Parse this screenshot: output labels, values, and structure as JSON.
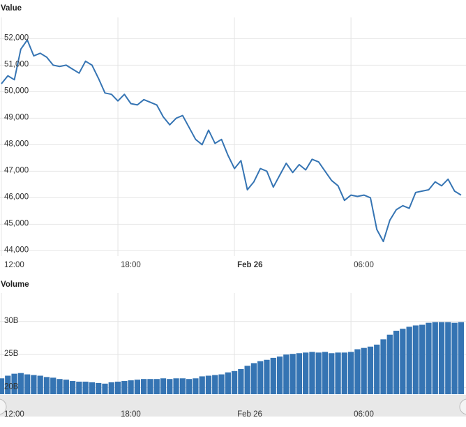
{
  "chart_data": [
    {
      "type": "line",
      "title": "Value",
      "color": "#3574b3",
      "grid": true,
      "x": [
        "12:00",
        "12:20",
        "12:40",
        "13:00",
        "13:20",
        "13:40",
        "14:00",
        "14:20",
        "14:40",
        "15:00",
        "15:20",
        "15:40",
        "16:00",
        "16:20",
        "16:40",
        "17:00",
        "17:20",
        "17:40",
        "18:00",
        "18:20",
        "18:40",
        "19:00",
        "19:20",
        "19:40",
        "20:00",
        "20:20",
        "20:40",
        "21:00",
        "21:20",
        "21:40",
        "22:00",
        "22:20",
        "22:40",
        "23:00",
        "23:20",
        "23:40",
        "00:00",
        "00:20",
        "00:40",
        "01:00",
        "01:20",
        "01:40",
        "02:00",
        "02:20",
        "02:40",
        "03:00",
        "03:20",
        "03:40",
        "04:00",
        "04:20",
        "04:40",
        "05:00",
        "05:20",
        "05:40",
        "06:00",
        "06:20",
        "06:40",
        "07:00",
        "07:20",
        "07:40",
        "08:00",
        "08:20",
        "08:40",
        "09:00",
        "09:20",
        "09:40",
        "10:00",
        "10:20",
        "10:40",
        "11:00",
        "11:20",
        "11:40"
      ],
      "values": [
        50300,
        50600,
        50450,
        51600,
        51950,
        51350,
        51450,
        51300,
        51000,
        50950,
        51000,
        50850,
        50700,
        51150,
        51000,
        50500,
        49950,
        49900,
        49650,
        49900,
        49550,
        49500,
        49700,
        49600,
        49500,
        49050,
        48750,
        49000,
        49100,
        48650,
        48200,
        48000,
        48550,
        48050,
        48200,
        47600,
        47100,
        47400,
        46300,
        46600,
        47100,
        47000,
        46400,
        46850,
        47300,
        46950,
        47250,
        47050,
        47450,
        47350,
        47000,
        46650,
        46450,
        45900,
        46100,
        46050,
        46100,
        46000,
        44800,
        44350,
        45150,
        45550,
        45700,
        45600,
        46200,
        46250,
        46300,
        46600,
        46450,
        46700,
        46250,
        46100
      ],
      "ylim": [
        43800,
        52800
      ],
      "yticks": [
        {
          "value": 44000,
          "label": "44,000"
        },
        {
          "value": 45000,
          "label": "45,000"
        },
        {
          "value": 46000,
          "label": "46,000"
        },
        {
          "value": 47000,
          "label": "47,000"
        },
        {
          "value": 48000,
          "label": "48,000"
        },
        {
          "value": 49000,
          "label": "49,000"
        },
        {
          "value": 50000,
          "label": "50,000"
        },
        {
          "value": 51000,
          "label": "51,000"
        },
        {
          "value": 52000,
          "label": "52,000"
        }
      ],
      "xticks": [
        {
          "value": "12:00",
          "label": "12:00"
        },
        {
          "value": "18:00",
          "label": "18:00"
        },
        {
          "value": "00:00",
          "label": "Feb 26"
        },
        {
          "value": "06:00",
          "label": "06:00"
        }
      ]
    },
    {
      "type": "bar",
      "title": "Volume",
      "color": "#3574b3",
      "grid": true,
      "x": [
        "12:00",
        "12:20",
        "12:40",
        "13:00",
        "13:20",
        "13:40",
        "14:00",
        "14:20",
        "14:40",
        "15:00",
        "15:20",
        "15:40",
        "16:00",
        "16:20",
        "16:40",
        "17:00",
        "17:20",
        "17:40",
        "18:00",
        "18:20",
        "18:40",
        "19:00",
        "19:20",
        "19:40",
        "20:00",
        "20:20",
        "20:40",
        "21:00",
        "21:20",
        "21:40",
        "22:00",
        "22:20",
        "22:40",
        "23:00",
        "23:20",
        "23:40",
        "00:00",
        "00:20",
        "00:40",
        "01:00",
        "01:20",
        "01:40",
        "02:00",
        "02:20",
        "02:40",
        "03:00",
        "03:20",
        "03:40",
        "04:00",
        "04:20",
        "04:40",
        "05:00",
        "05:20",
        "05:40",
        "06:00",
        "06:20",
        "06:40",
        "07:00",
        "07:20",
        "07:40",
        "08:00",
        "08:20",
        "08:40",
        "09:00",
        "09:20",
        "09:40",
        "10:00",
        "10:20",
        "10:40",
        "11:00",
        "11:20",
        "11:40"
      ],
      "values": [
        21.4,
        21.8,
        22.1,
        22.2,
        22.0,
        21.9,
        21.8,
        21.6,
        21.5,
        21.3,
        21.2,
        21.0,
        20.9,
        20.9,
        20.8,
        20.7,
        20.6,
        20.8,
        20.9,
        21.0,
        21.1,
        21.2,
        21.3,
        21.3,
        21.3,
        21.4,
        21.3,
        21.4,
        21.4,
        21.3,
        21.4,
        21.7,
        21.8,
        21.9,
        22.0,
        22.3,
        22.5,
        22.8,
        23.3,
        23.7,
        24.0,
        24.2,
        24.5,
        24.7,
        25.0,
        25.1,
        25.2,
        25.3,
        25.4,
        25.3,
        25.4,
        25.2,
        25.3,
        25.3,
        25.4,
        25.8,
        26.0,
        26.2,
        26.5,
        27.3,
        28.0,
        28.6,
        28.9,
        29.2,
        29.4,
        29.5,
        29.8,
        29.9,
        29.9,
        29.9,
        29.8,
        29.9
      ],
      "ylim": [
        19,
        34.3
      ],
      "yticks": [
        {
          "value": 20,
          "label": "20B"
        },
        {
          "value": 25,
          "label": "25B"
        },
        {
          "value": 30,
          "label": "30B"
        }
      ],
      "xticks": [
        {
          "value": "12:00",
          "label": "12:00"
        },
        {
          "value": "18:00",
          "label": "18:00"
        },
        {
          "value": "00:00",
          "label": "Feb 26"
        },
        {
          "value": "06:00",
          "label": "06:00"
        }
      ]
    }
  ]
}
